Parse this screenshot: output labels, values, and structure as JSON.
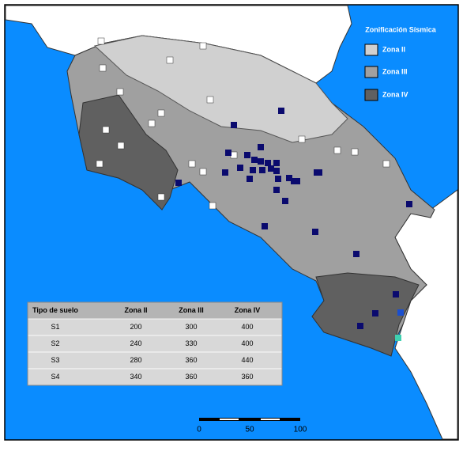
{
  "legend": {
    "title": "Zonificación Sísmica",
    "items": [
      "Zona II",
      "Zona III",
      "Zona IV"
    ]
  },
  "table": {
    "header": [
      "Tipo de suelo",
      "Zona II",
      "Zona III",
      "Zona IV"
    ],
    "rows": [
      [
        "S1",
        200,
        300,
        400
      ],
      [
        "S2",
        240,
        330,
        400
      ],
      [
        "S3",
        280,
        360,
        440
      ],
      [
        "S4",
        340,
        360,
        360
      ]
    ]
  },
  "scale": {
    "labels": [
      0,
      50,
      100
    ]
  }
}
